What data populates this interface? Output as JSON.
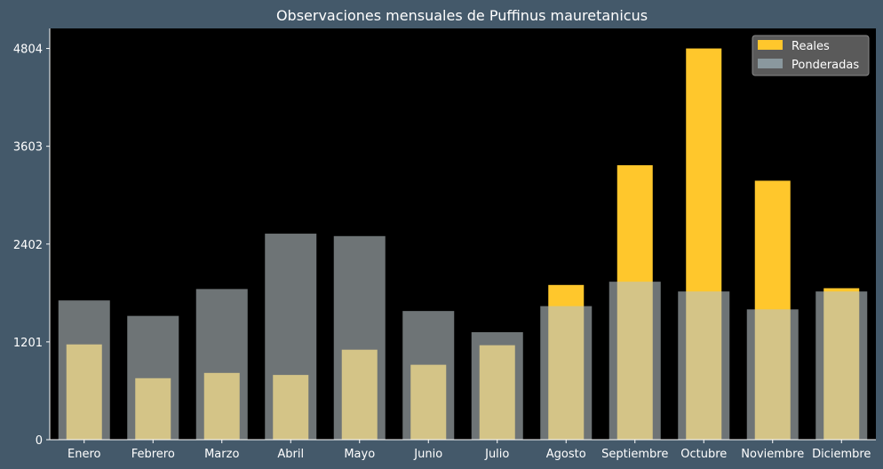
{
  "chart_data": {
    "type": "bar",
    "title": "Observaciones mensuales de Puffinus mauretanicus",
    "xlabel": "",
    "ylabel": "",
    "categories": [
      "Enero",
      "Febrero",
      "Marzo",
      "Abril",
      "Mayo",
      "Junio",
      "Julio",
      "Agosto",
      "Septiembre",
      "Octubre",
      "Noviembre",
      "Diciembre"
    ],
    "series": [
      {
        "name": "Reales",
        "color": "#ffc72c",
        "values": [
          1170,
          755,
          820,
          795,
          1105,
          920,
          1160,
          1900,
          3370,
          4804,
          3180,
          1860
        ]
      },
      {
        "name": "Ponderadas",
        "color": "#b8c1c4",
        "values": [
          1710,
          1520,
          1850,
          2530,
          2500,
          1580,
          1320,
          1640,
          1940,
          1820,
          1600,
          1820
        ]
      }
    ],
    "yticks": [
      0,
      1201,
      2402,
      3603,
      4804
    ],
    "ylim": [
      0,
      5050
    ],
    "legend": "top-right",
    "grid": false,
    "plot_background": "#000000",
    "figure_background": "#44596a"
  }
}
